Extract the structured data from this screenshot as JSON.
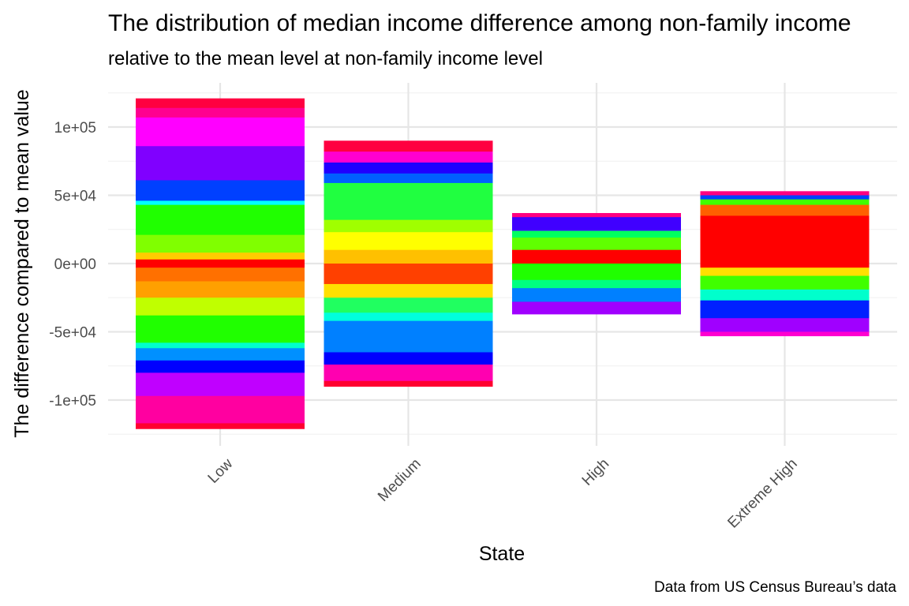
{
  "chart_data": {
    "type": "bar",
    "title": "The distribution of median income difference among non-family income",
    "subtitle": "relative to the mean level at non-family income level",
    "xlabel": "State",
    "ylabel": "The difference compared to mean value",
    "caption": "Data from US Census Bureau’s data",
    "categories": [
      "Low",
      "Medium",
      "High",
      "Extreme High"
    ],
    "ylim": [
      -125000,
      125000
    ],
    "y_ticks": [
      {
        "value": 100000,
        "label": "1e+05"
      },
      {
        "value": 50000,
        "label": "5e+04"
      },
      {
        "value": 0,
        "label": "0e+00"
      },
      {
        "value": -50000,
        "label": "-5e+04"
      },
      {
        "value": -100000,
        "label": "-1e+05"
      }
    ],
    "y_minor_ticks": [
      125000,
      75000,
      25000,
      -25000,
      -75000,
      -125000
    ],
    "grid": true,
    "legend": "none",
    "bars": [
      {
        "category": "Low",
        "ymin": -121000,
        "ymax": 121000,
        "segments": [
          {
            "from": 114000,
            "to": 121000,
            "color": "#ff0040"
          },
          {
            "from": 107000,
            "to": 114000,
            "color": "#ff0090"
          },
          {
            "from": 86000,
            "to": 107000,
            "color": "#ff00ff"
          },
          {
            "from": 61000,
            "to": 86000,
            "color": "#8000ff"
          },
          {
            "from": 46000,
            "to": 61000,
            "color": "#0040ff"
          },
          {
            "from": 43000,
            "to": 46000,
            "color": "#00ffff"
          },
          {
            "from": 21000,
            "to": 43000,
            "color": "#20ff00"
          },
          {
            "from": 8000,
            "to": 21000,
            "color": "#80ff00"
          },
          {
            "from": 3000,
            "to": 8000,
            "color": "#ffcc00"
          },
          {
            "from": -3000,
            "to": 3000,
            "color": "#ff0000"
          },
          {
            "from": -13000,
            "to": -3000,
            "color": "#ff7000"
          },
          {
            "from": -25000,
            "to": -13000,
            "color": "#ffa000"
          },
          {
            "from": -38000,
            "to": -25000,
            "color": "#c0ff00"
          },
          {
            "from": -58000,
            "to": -38000,
            "color": "#20ff00"
          },
          {
            "from": -62000,
            "to": -58000,
            "color": "#00ffcc"
          },
          {
            "from": -71000,
            "to": -62000,
            "color": "#0090ff"
          },
          {
            "from": -80000,
            "to": -71000,
            "color": "#0000ff"
          },
          {
            "from": -97000,
            "to": -80000,
            "color": "#c000ff"
          },
          {
            "from": -117000,
            "to": -97000,
            "color": "#ff00a0"
          },
          {
            "from": -121000,
            "to": -117000,
            "color": "#ff0030"
          }
        ]
      },
      {
        "category": "Medium",
        "ymin": -90000,
        "ymax": 90000,
        "segments": [
          {
            "from": 82000,
            "to": 90000,
            "color": "#ff0040"
          },
          {
            "from": 74000,
            "to": 82000,
            "color": "#ff00d0"
          },
          {
            "from": 66000,
            "to": 74000,
            "color": "#2000ff"
          },
          {
            "from": 59000,
            "to": 66000,
            "color": "#0060ff"
          },
          {
            "from": 32000,
            "to": 59000,
            "color": "#20ff40"
          },
          {
            "from": 23000,
            "to": 32000,
            "color": "#a0ff00"
          },
          {
            "from": 10000,
            "to": 23000,
            "color": "#ffff00"
          },
          {
            "from": 0,
            "to": 10000,
            "color": "#ffc000"
          },
          {
            "from": -15000,
            "to": 0,
            "color": "#ff4000"
          },
          {
            "from": -25000,
            "to": -15000,
            "color": "#ffe000"
          },
          {
            "from": -36000,
            "to": -25000,
            "color": "#20ff60"
          },
          {
            "from": -42000,
            "to": -36000,
            "color": "#00ffdd"
          },
          {
            "from": -65000,
            "to": -42000,
            "color": "#0080ff"
          },
          {
            "from": -74000,
            "to": -65000,
            "color": "#0000ff"
          },
          {
            "from": -86000,
            "to": -74000,
            "color": "#ff00b0"
          },
          {
            "from": -90000,
            "to": -86000,
            "color": "#ff0030"
          }
        ]
      },
      {
        "category": "High",
        "ymin": -37000,
        "ymax": 37000,
        "segments": [
          {
            "from": 34000,
            "to": 37000,
            "color": "#ff0080"
          },
          {
            "from": 24000,
            "to": 34000,
            "color": "#4000ff"
          },
          {
            "from": 19000,
            "to": 24000,
            "color": "#00ff60"
          },
          {
            "from": 10000,
            "to": 19000,
            "color": "#60ff00"
          },
          {
            "from": 0,
            "to": 10000,
            "color": "#ff0000"
          },
          {
            "from": -12000,
            "to": 0,
            "color": "#20ff00"
          },
          {
            "from": -18000,
            "to": -12000,
            "color": "#00ff80"
          },
          {
            "from": -28000,
            "to": -18000,
            "color": "#0080ff"
          },
          {
            "from": -37000,
            "to": -28000,
            "color": "#a000ff"
          }
        ]
      },
      {
        "category": "Extreme High",
        "ymin": -53000,
        "ymax": 53000,
        "segments": [
          {
            "from": 50000,
            "to": 53000,
            "color": "#ff0080"
          },
          {
            "from": 47000,
            "to": 50000,
            "color": "#0040ff"
          },
          {
            "from": 43000,
            "to": 47000,
            "color": "#40ff00"
          },
          {
            "from": 35000,
            "to": 43000,
            "color": "#ff6000"
          },
          {
            "from": -3000,
            "to": 35000,
            "color": "#ff0000"
          },
          {
            "from": -9000,
            "to": -3000,
            "color": "#ffe000"
          },
          {
            "from": -19000,
            "to": -9000,
            "color": "#40ff00"
          },
          {
            "from": -27000,
            "to": -19000,
            "color": "#00ffcc"
          },
          {
            "from": -40000,
            "to": -27000,
            "color": "#0020ff"
          },
          {
            "from": -50000,
            "to": -40000,
            "color": "#a000ff"
          },
          {
            "from": -53000,
            "to": -50000,
            "color": "#ff00d0"
          }
        ]
      }
    ]
  }
}
